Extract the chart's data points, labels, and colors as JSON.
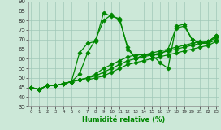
{
  "background_color": "#cce8d8",
  "grid_color": "#a0c8b8",
  "line_color": "#008800",
  "xlabel": "Humidité relative (%)",
  "xmin": 0,
  "xmax": 23,
  "ymin": 35,
  "ymax": 90,
  "yticks": [
    35,
    40,
    45,
    50,
    55,
    60,
    65,
    70,
    75,
    80,
    85,
    90
  ],
  "series": [
    [
      45,
      44,
      46,
      46,
      47,
      48,
      63,
      68,
      69,
      84,
      82,
      81,
      65,
      60,
      62,
      62,
      58,
      55,
      77,
      78,
      70,
      68,
      69,
      72
    ],
    [
      45,
      44,
      46,
      46,
      47,
      48,
      52,
      63,
      70,
      80,
      83,
      80,
      66,
      60,
      62,
      62,
      62,
      65,
      76,
      77,
      70,
      68,
      69,
      72
    ],
    [
      45,
      44,
      46,
      46,
      47,
      48,
      49,
      50,
      52,
      55,
      57,
      59,
      61,
      62,
      62,
      63,
      64,
      65,
      66,
      67,
      68,
      69,
      69,
      71
    ],
    [
      45,
      44,
      46,
      46,
      47,
      48,
      49,
      50,
      51,
      53,
      55,
      57,
      59,
      60,
      61,
      62,
      63,
      64,
      65,
      66,
      67,
      68,
      68,
      70
    ],
    [
      45,
      44,
      46,
      46,
      47,
      48,
      49,
      49,
      50,
      51,
      53,
      55,
      57,
      58,
      59,
      60,
      61,
      62,
      63,
      64,
      65,
      66,
      67,
      69
    ]
  ]
}
